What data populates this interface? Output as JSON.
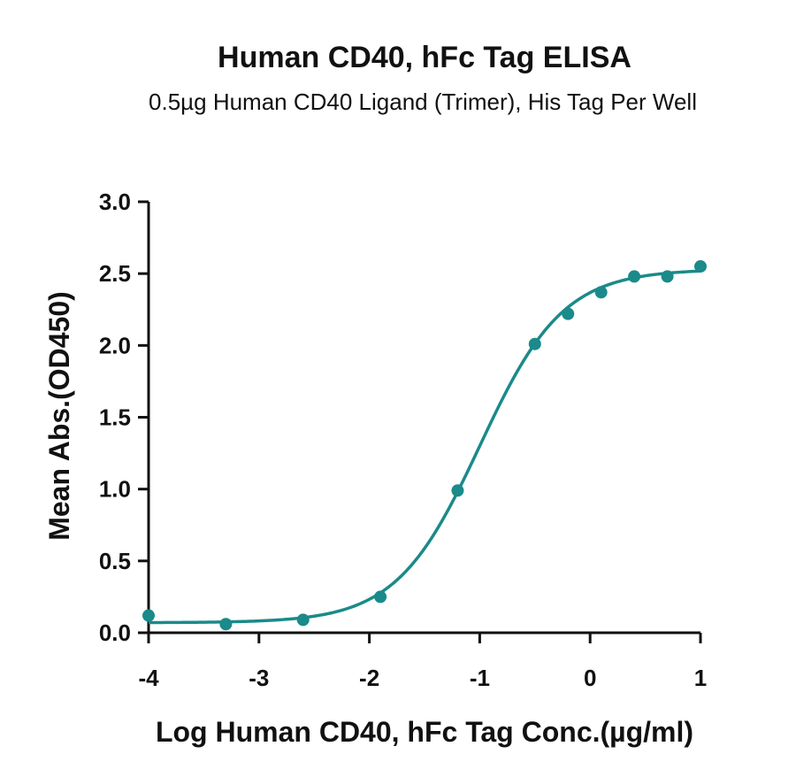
{
  "chart_data": {
    "type": "scatter",
    "title": "Human CD40, hFc Tag ELISA",
    "subtitle": "0.5µg Human CD40 Ligand (Trimer), His Tag Per Well",
    "xlabel": "Log Human CD40, hFc Tag Conc.(µg/ml)",
    "ylabel": "Mean Abs.(OD450)",
    "xlim": [
      -4,
      1
    ],
    "ylim": [
      0,
      3.0
    ],
    "x_ticks": [
      "-4",
      "-3",
      "-2",
      "-1",
      "0",
      "1"
    ],
    "y_ticks": [
      "0.0",
      "0.5",
      "1.0",
      "1.5",
      "2.0",
      "2.5",
      "3.0"
    ],
    "grid": false,
    "color": "#1a8a8a",
    "series": [
      {
        "points": [
          {
            "x": -4.0,
            "y": 0.12
          },
          {
            "x": -3.3,
            "y": 0.06
          },
          {
            "x": -2.6,
            "y": 0.09
          },
          {
            "x": -1.9,
            "y": 0.25
          },
          {
            "x": -1.2,
            "y": 0.99
          },
          {
            "x": -0.5,
            "y": 2.01
          },
          {
            "x": -0.2,
            "y": 2.22
          },
          {
            "x": 0.1,
            "y": 2.37
          },
          {
            "x": 0.4,
            "y": 2.48
          },
          {
            "x": 0.7,
            "y": 2.48
          },
          {
            "x": 1.0,
            "y": 2.55
          }
        ],
        "fit": {
          "bottom": 0.07,
          "top": 2.53,
          "log_ec50": -1.0,
          "hill_slope": 1.15
        }
      }
    ]
  }
}
